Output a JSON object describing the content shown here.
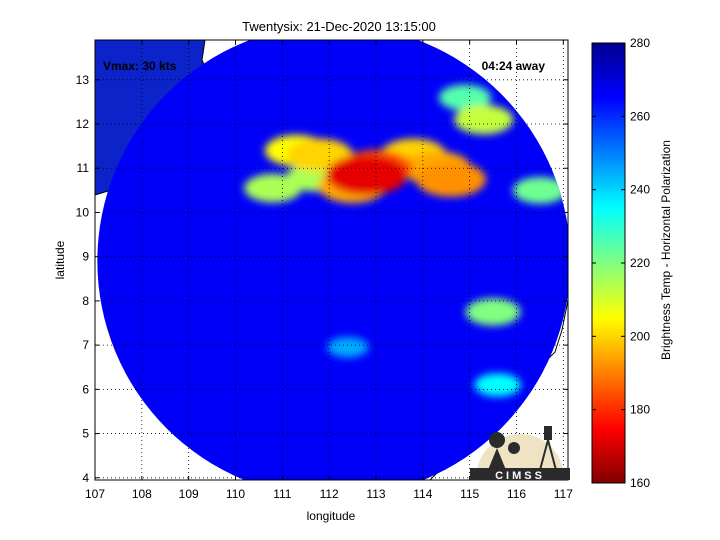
{
  "chart_data": {
    "type": "heatmap",
    "title": "Twentysix: 21-Dec-2020 13:15:00",
    "xlabel": "longitude",
    "ylabel": "latitude",
    "xlim": [
      107,
      117.1
    ],
    "ylim": [
      3.95,
      13.9
    ],
    "xticks": [
      "107",
      "108",
      "109",
      "110",
      "111",
      "112",
      "113",
      "114",
      "115",
      "116",
      "117"
    ],
    "yticks": [
      "4",
      "5",
      "6",
      "7",
      "8",
      "9",
      "10",
      "11",
      "12",
      "13"
    ],
    "grid": true,
    "annotations": {
      "vmax": "Vmax: 30 kts",
      "away": "04:24 away"
    },
    "colorbar": {
      "label": "Brightness Temp - Horizontal Polarization",
      "range": [
        160,
        280
      ],
      "ticks": [
        "160",
        "180",
        "200",
        "220",
        "240",
        "260",
        "280"
      ],
      "colormap": [
        "#800000",
        "#ff0000",
        "#ffff00",
        "#00ffff",
        "#0000ff",
        "#00008f"
      ]
    },
    "swath": {
      "center_lon": 112.1,
      "center_lat": 8.9,
      "radius_deg": 5.05
    },
    "background_value": 266,
    "cold_cells": [
      {
        "lon": 112.8,
        "lat": 10.85,
        "value": 172
      },
      {
        "lon": 112.5,
        "lat": 10.6,
        "value": 195
      },
      {
        "lon": 113.0,
        "lat": 11.0,
        "value": 185
      },
      {
        "lon": 111.8,
        "lat": 11.3,
        "value": 200
      },
      {
        "lon": 111.3,
        "lat": 11.4,
        "value": 205
      },
      {
        "lon": 113.8,
        "lat": 11.3,
        "value": 200
      },
      {
        "lon": 114.3,
        "lat": 11.0,
        "value": 195
      },
      {
        "lon": 114.6,
        "lat": 10.75,
        "value": 192
      },
      {
        "lon": 111.7,
        "lat": 10.8,
        "value": 215
      },
      {
        "lon": 110.8,
        "lat": 10.55,
        "value": 215
      },
      {
        "lon": 114.9,
        "lat": 12.6,
        "value": 225
      },
      {
        "lon": 115.3,
        "lat": 12.1,
        "value": 212
      },
      {
        "lon": 115.5,
        "lat": 7.75,
        "value": 220
      },
      {
        "lon": 116.5,
        "lat": 10.5,
        "value": 222
      },
      {
        "lon": 115.6,
        "lat": 6.1,
        "value": 235
      },
      {
        "lon": 112.4,
        "lat": 6.95,
        "value": 245
      }
    ],
    "logo_text": "CIMSS"
  }
}
